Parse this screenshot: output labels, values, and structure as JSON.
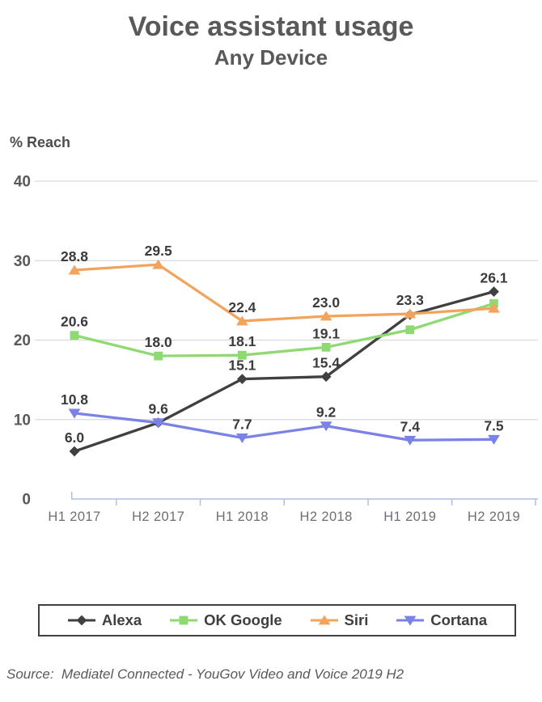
{
  "page": {
    "title": "Voice assistant usage",
    "subtitle": "Any Device",
    "y_axis_title": "% Reach",
    "source_note": "Source:  Mediatel Connected - YouGov Video and Voice 2019 H2"
  },
  "chart_data": {
    "type": "line",
    "title": "Voice assistant usage",
    "subtitle": "Any Device",
    "ylabel": "% Reach",
    "xlabel": "",
    "categories": [
      "H1 2017",
      "H2 2017",
      "H1 2018",
      "H2 2018",
      "H1 2019",
      "H2 2019"
    ],
    "ylim": [
      0,
      40
    ],
    "yticks": [
      0,
      10,
      20,
      30,
      40
    ],
    "grid": true,
    "legend_position": "bottom",
    "series": [
      {
        "name": "Alexa",
        "color": "#404040",
        "marker": "diamond",
        "values": [
          6.0,
          9.6,
          15.1,
          15.4,
          23.2,
          26.1
        ],
        "labels": [
          "6.0",
          "",
          "15.1",
          "15.4",
          "",
          "26.1"
        ]
      },
      {
        "name": "OK Google",
        "color": "#8fd973",
        "marker": "square",
        "values": [
          20.6,
          18.0,
          18.1,
          19.1,
          21.3,
          24.6
        ],
        "labels": [
          "20.6",
          "18.0",
          "18.1",
          "19.1",
          "",
          ""
        ]
      },
      {
        "name": "Siri",
        "color": "#f2a45c",
        "marker": "triangle-up",
        "values": [
          28.8,
          29.5,
          22.4,
          23.0,
          23.3,
          24.0
        ],
        "labels": [
          "28.8",
          "29.5",
          "22.4",
          "23.0",
          "23.3",
          ""
        ]
      },
      {
        "name": "Cortana",
        "color": "#7a82e8",
        "marker": "triangle-down",
        "values": [
          10.8,
          9.6,
          7.7,
          9.2,
          7.4,
          7.5
        ],
        "labels": [
          "10.8",
          "9.6",
          "7.7",
          "9.2",
          "7.4",
          "7.5"
        ]
      }
    ],
    "axis_colors": {
      "grid": "#d9d9d9",
      "axis_line": "#afbee2",
      "y_tick_label": "#595959",
      "x_tick_label": "#6e6e76",
      "data_label": "#3b3b3b"
    }
  }
}
